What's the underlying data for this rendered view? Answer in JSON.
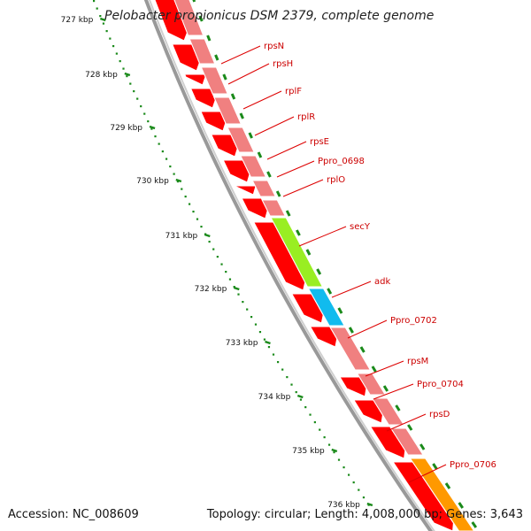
{
  "title": "Pelobacter propionicus DSM 2379, complete genome",
  "footer": {
    "accession": "Accession: NC_008609",
    "topology": "Topology: circular; Length: 4,008,000 bp; Genes: 3,643"
  },
  "colors": {
    "strand_reverse_gene": "#ff0000",
    "strand_forward_gene": "#f08080",
    "secY": "#99ee22",
    "adk": "#11bbee",
    "Ppro_0706": "#ff9900",
    "backbone": "#999999",
    "tick_label": "#111111",
    "gene_label": "#cc0000",
    "gc_skew_ticks": "#1a8a1a"
  },
  "ruler": [
    {
      "label": "727 kbp"
    },
    {
      "label": "728 kbp"
    },
    {
      "label": "729 kbp"
    },
    {
      "label": "730 kbp"
    },
    {
      "label": "731 kbp"
    },
    {
      "label": "732 kbp"
    },
    {
      "label": "733 kbp"
    },
    {
      "label": "734 kbp"
    },
    {
      "label": "735 kbp"
    },
    {
      "label": "736 kbp"
    }
  ],
  "genes": [
    {
      "name": "rpsN"
    },
    {
      "name": "rpsH"
    },
    {
      "name": "rplF"
    },
    {
      "name": "rplR"
    },
    {
      "name": "rpsE"
    },
    {
      "name": "Ppro_0698"
    },
    {
      "name": "rplO"
    },
    {
      "name": "secY"
    },
    {
      "name": "adk"
    },
    {
      "name": "Ppro_0702"
    },
    {
      "name": "rpsM"
    },
    {
      "name": "Ppro_0704"
    },
    {
      "name": "rpsD"
    },
    {
      "name": "Ppro_0706"
    }
  ]
}
